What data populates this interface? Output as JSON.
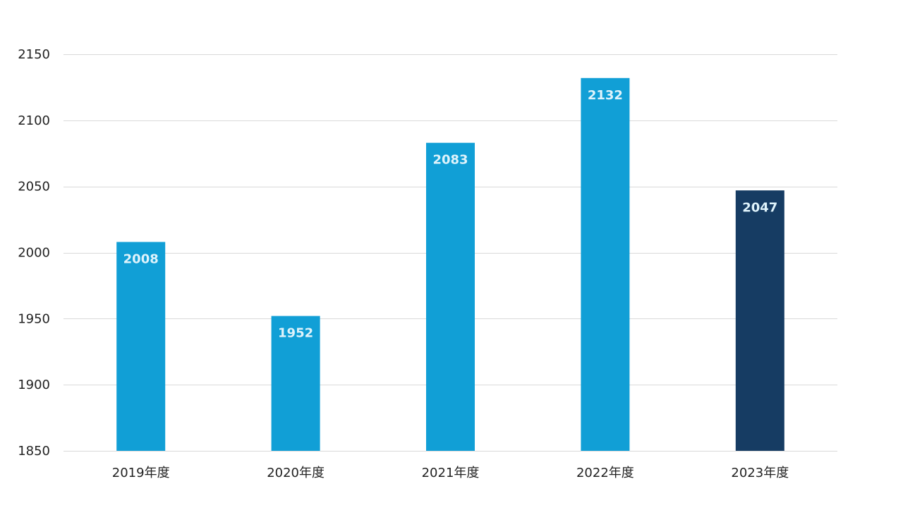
{
  "chart_data": {
    "type": "bar",
    "categories": [
      "2019年度",
      "2020年度",
      "2021年度",
      "2022年度",
      "2023年度"
    ],
    "values": [
      2008,
      1952,
      2083,
      2132,
      2047
    ],
    "title": "",
    "xlabel": "",
    "ylabel": "",
    "ylim": [
      1850,
      2150
    ],
    "yticks": [
      1850,
      1900,
      1950,
      2000,
      2050,
      2100,
      2150
    ],
    "grid": true,
    "legend": "none",
    "data_labels": true,
    "colors": {
      "default_bar": "#119fd6",
      "highlight_bar": "#163c63",
      "highlight_index": 4,
      "data_label": "#dff3fb",
      "grid": "#d9d9d9",
      "text": "#222222"
    }
  }
}
